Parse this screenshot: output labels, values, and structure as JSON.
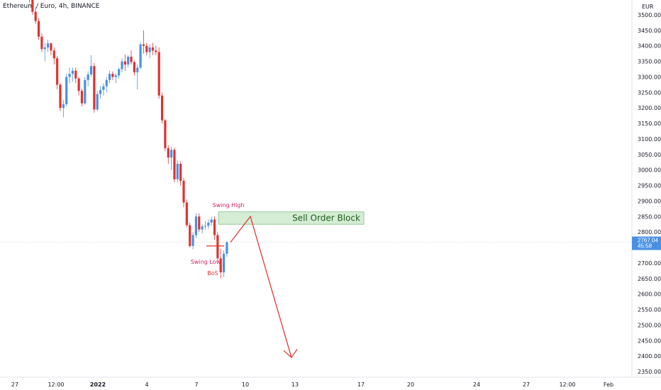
{
  "symbol_label": "Ethereum / Euro, 4h, BINANCE",
  "chart_data": {
    "type": "candlestick",
    "title": "Ethereum / Euro, 4h, BINANCE",
    "currency": "EUR",
    "ylim": [
      2330,
      3560
    ],
    "y_ticks": [
      "3500.00",
      "3450.00",
      "3400.00",
      "3350.00",
      "3300.00",
      "3250.00",
      "3200.00",
      "3150.00",
      "3100.00",
      "3050.00",
      "3000.00",
      "2950.00",
      "2900.00",
      "2850.00",
      "2800.00",
      "2750.00",
      "2700.00",
      "2650.00",
      "2600.00",
      "2550.00",
      "2500.00",
      "2450.00",
      "2400.00",
      "2350.00"
    ],
    "x_ticks": [
      {
        "label": "27",
        "bold": false
      },
      {
        "label": "12:00",
        "bold": false
      },
      {
        "label": "2022",
        "bold": true
      },
      {
        "label": "4",
        "bold": false
      },
      {
        "label": "7",
        "bold": false
      },
      {
        "label": "10",
        "bold": false
      },
      {
        "label": "13",
        "bold": false
      },
      {
        "label": "17",
        "bold": false
      },
      {
        "label": "20",
        "bold": false
      },
      {
        "label": "24",
        "bold": false
      },
      {
        "label": "27",
        "bold": false
      },
      {
        "label": "12:00",
        "bold": false
      },
      {
        "label": "Feb",
        "bold": false
      }
    ],
    "last_price": {
      "value": 2767.04,
      "label": "2767.04",
      "countdown": "45:58"
    },
    "candles": [
      {
        "o": 3575,
        "h": 3590,
        "l": 3540,
        "c": 3555
      },
      {
        "o": 3555,
        "h": 3560,
        "l": 3500,
        "c": 3510
      },
      {
        "o": 3510,
        "h": 3525,
        "l": 3470,
        "c": 3480
      },
      {
        "o": 3480,
        "h": 3490,
        "l": 3420,
        "c": 3430
      },
      {
        "o": 3430,
        "h": 3440,
        "l": 3380,
        "c": 3390
      },
      {
        "o": 3390,
        "h": 3410,
        "l": 3350,
        "c": 3395
      },
      {
        "o": 3395,
        "h": 3420,
        "l": 3380,
        "c": 3408
      },
      {
        "o": 3408,
        "h": 3412,
        "l": 3370,
        "c": 3385
      },
      {
        "o": 3385,
        "h": 3395,
        "l": 3340,
        "c": 3360
      },
      {
        "o": 3360,
        "h": 3368,
        "l": 3260,
        "c": 3275
      },
      {
        "o": 3275,
        "h": 3280,
        "l": 3190,
        "c": 3200
      },
      {
        "o": 3200,
        "h": 3225,
        "l": 3170,
        "c": 3212
      },
      {
        "o": 3212,
        "h": 3310,
        "l": 3205,
        "c": 3300
      },
      {
        "o": 3300,
        "h": 3330,
        "l": 3280,
        "c": 3310
      },
      {
        "o": 3310,
        "h": 3330,
        "l": 3285,
        "c": 3320
      },
      {
        "o": 3320,
        "h": 3330,
        "l": 3280,
        "c": 3295
      },
      {
        "o": 3295,
        "h": 3300,
        "l": 3240,
        "c": 3255
      },
      {
        "o": 3255,
        "h": 3262,
        "l": 3205,
        "c": 3215
      },
      {
        "o": 3215,
        "h": 3300,
        "l": 3210,
        "c": 3290
      },
      {
        "o": 3290,
        "h": 3318,
        "l": 3270,
        "c": 3308
      },
      {
        "o": 3308,
        "h": 3370,
        "l": 3300,
        "c": 3335
      },
      {
        "o": 3335,
        "h": 3345,
        "l": 3185,
        "c": 3195
      },
      {
        "o": 3195,
        "h": 3255,
        "l": 3190,
        "c": 3245
      },
      {
        "o": 3245,
        "h": 3270,
        "l": 3230,
        "c": 3258
      },
      {
        "o": 3258,
        "h": 3280,
        "l": 3240,
        "c": 3270
      },
      {
        "o": 3270,
        "h": 3300,
        "l": 3250,
        "c": 3290
      },
      {
        "o": 3290,
        "h": 3320,
        "l": 3280,
        "c": 3310
      },
      {
        "o": 3310,
        "h": 3318,
        "l": 3290,
        "c": 3300
      },
      {
        "o": 3300,
        "h": 3312,
        "l": 3280,
        "c": 3305
      },
      {
        "o": 3305,
        "h": 3330,
        "l": 3295,
        "c": 3325
      },
      {
        "o": 3325,
        "h": 3360,
        "l": 3315,
        "c": 3350
      },
      {
        "o": 3350,
        "h": 3372,
        "l": 3320,
        "c": 3340
      },
      {
        "o": 3340,
        "h": 3370,
        "l": 3330,
        "c": 3365
      },
      {
        "o": 3365,
        "h": 3385,
        "l": 3340,
        "c": 3348
      },
      {
        "o": 3348,
        "h": 3352,
        "l": 3305,
        "c": 3315
      },
      {
        "o": 3315,
        "h": 3340,
        "l": 3260,
        "c": 3330
      },
      {
        "o": 3330,
        "h": 3412,
        "l": 3325,
        "c": 3405
      },
      {
        "o": 3405,
        "h": 3450,
        "l": 3375,
        "c": 3400
      },
      {
        "o": 3400,
        "h": 3410,
        "l": 3370,
        "c": 3380
      },
      {
        "o": 3380,
        "h": 3405,
        "l": 3360,
        "c": 3395
      },
      {
        "o": 3395,
        "h": 3410,
        "l": 3370,
        "c": 3385
      },
      {
        "o": 3385,
        "h": 3400,
        "l": 3370,
        "c": 3380
      },
      {
        "o": 3380,
        "h": 3395,
        "l": 3230,
        "c": 3240
      },
      {
        "o": 3240,
        "h": 3250,
        "l": 3150,
        "c": 3160
      },
      {
        "o": 3160,
        "h": 3165,
        "l": 3060,
        "c": 3070
      },
      {
        "o": 3070,
        "h": 3080,
        "l": 3020,
        "c": 3040
      },
      {
        "o": 3040,
        "h": 3075,
        "l": 3000,
        "c": 3065
      },
      {
        "o": 3065,
        "h": 3072,
        "l": 2960,
        "c": 2970
      },
      {
        "o": 2970,
        "h": 3030,
        "l": 2960,
        "c": 3020
      },
      {
        "o": 3020,
        "h": 3028,
        "l": 2950,
        "c": 2965
      },
      {
        "o": 2965,
        "h": 2975,
        "l": 2880,
        "c": 2895
      },
      {
        "o": 2895,
        "h": 2905,
        "l": 2815,
        "c": 2822
      },
      {
        "o": 2822,
        "h": 2830,
        "l": 2750,
        "c": 2755
      },
      {
        "o": 2755,
        "h": 2800,
        "l": 2745,
        "c": 2790
      },
      {
        "o": 2790,
        "h": 2860,
        "l": 2780,
        "c": 2850
      },
      {
        "o": 2850,
        "h": 2860,
        "l": 2800,
        "c": 2808
      },
      {
        "o": 2808,
        "h": 2825,
        "l": 2795,
        "c": 2818
      },
      {
        "o": 2818,
        "h": 2835,
        "l": 2808,
        "c": 2820
      },
      {
        "o": 2820,
        "h": 2840,
        "l": 2810,
        "c": 2830
      },
      {
        "o": 2830,
        "h": 2850,
        "l": 2820,
        "c": 2840
      },
      {
        "o": 2840,
        "h": 2850,
        "l": 2775,
        "c": 2790
      },
      {
        "o": 2790,
        "h": 2800,
        "l": 2705,
        "c": 2715
      },
      {
        "o": 2715,
        "h": 2745,
        "l": 2650,
        "c": 2670
      },
      {
        "o": 2670,
        "h": 2740,
        "l": 2655,
        "c": 2730
      },
      {
        "o": 2730,
        "h": 2770,
        "l": 2720,
        "c": 2767
      }
    ]
  },
  "annotations": {
    "swing_high": "Swing High",
    "swing_low": "Swing Low",
    "bos": "BoS",
    "sell_order_block": "Sell Order Block"
  },
  "colors": {
    "up": "#4a90e2",
    "down": "#e0312f",
    "order_block_fill": "#d5ecd5",
    "order_block_border": "#7fc07f",
    "order_block_text": "#1e5e1e",
    "label_pink": "#d81b60",
    "arrow": "#e53935"
  }
}
